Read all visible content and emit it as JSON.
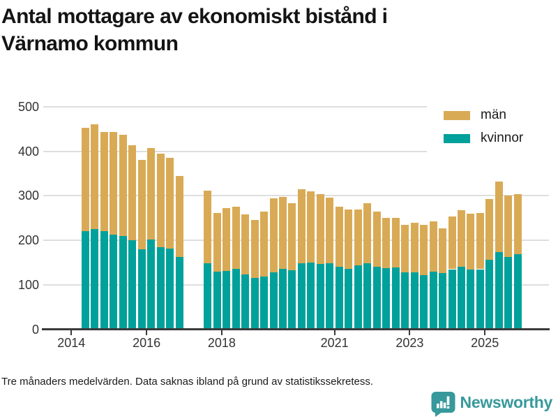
{
  "header": {
    "title": "Antal mottagare av ekonomiskt bistånd i Värnamo kommun",
    "title_lines": [
      "Antal mottagare av ekonomiskt bistånd i",
      "Värnamo kommun"
    ]
  },
  "footer": {
    "note": "Tre månaders medelvärden. Data saknas ibland på grund av statistikssekretess.",
    "brand": "Newsworthy",
    "brand_color": "#37999b"
  },
  "chart_data": {
    "type": "bar",
    "stacked": true,
    "title": "Antal mottagare av ekonomiskt bistånd i Värnamo kommun",
    "xlabel": "",
    "ylabel": "",
    "ylim": [
      0,
      500
    ],
    "y_ticks": [
      0,
      100,
      200,
      300,
      400,
      500
    ],
    "x_ticks": [
      2014,
      2016,
      2018,
      2021,
      2023,
      2025
    ],
    "grid": true,
    "legend_position": "top-right",
    "axis_color": "#3a3a3a",
    "grid_color": "#dedede",
    "series": [
      {
        "name": "män",
        "color": "#d9aa55"
      },
      {
        "name": "kvinnor",
        "color": "#00a19a"
      }
    ],
    "missing_periods": [
      "2017 Q1",
      "2017 Q2"
    ],
    "bars": [
      {
        "period": "2014 Q2",
        "kvinnor": 220,
        "man": 233
      },
      {
        "period": "2014 Q3",
        "kvinnor": 226,
        "man": 235
      },
      {
        "period": "2014 Q4",
        "kvinnor": 221,
        "man": 222
      },
      {
        "period": "2015 Q1",
        "kvinnor": 212,
        "man": 231
      },
      {
        "period": "2015 Q2",
        "kvinnor": 209,
        "man": 228
      },
      {
        "period": "2015 Q3",
        "kvinnor": 200,
        "man": 214
      },
      {
        "period": "2015 Q4",
        "kvinnor": 180,
        "man": 201
      },
      {
        "period": "2016 Q1",
        "kvinnor": 201,
        "man": 207
      },
      {
        "period": "2016 Q2",
        "kvinnor": 184,
        "man": 211
      },
      {
        "period": "2016 Q3",
        "kvinnor": 182,
        "man": 203
      },
      {
        "period": "2016 Q4",
        "kvinnor": 162,
        "man": 182
      },
      {
        "period": "2017 Q3",
        "kvinnor": 148,
        "man": 164
      },
      {
        "period": "2017 Q4",
        "kvinnor": 130,
        "man": 132
      },
      {
        "period": "2018 Q1",
        "kvinnor": 131,
        "man": 141
      },
      {
        "period": "2018 Q2",
        "kvinnor": 136,
        "man": 140
      },
      {
        "period": "2018 Q3",
        "kvinnor": 124,
        "man": 135
      },
      {
        "period": "2018 Q4",
        "kvinnor": 115,
        "man": 131
      },
      {
        "period": "2019 Q1",
        "kvinnor": 118,
        "man": 146
      },
      {
        "period": "2019 Q2",
        "kvinnor": 128,
        "man": 166
      },
      {
        "period": "2019 Q3",
        "kvinnor": 136,
        "man": 161
      },
      {
        "period": "2019 Q4",
        "kvinnor": 133,
        "man": 151
      },
      {
        "period": "2020 Q1",
        "kvinnor": 149,
        "man": 165
      },
      {
        "period": "2020 Q2",
        "kvinnor": 150,
        "man": 160
      },
      {
        "period": "2020 Q3",
        "kvinnor": 147,
        "man": 156
      },
      {
        "period": "2020 Q4",
        "kvinnor": 148,
        "man": 148
      },
      {
        "period": "2021 Q1",
        "kvinnor": 140,
        "man": 135
      },
      {
        "period": "2021 Q2",
        "kvinnor": 136,
        "man": 134
      },
      {
        "period": "2021 Q3",
        "kvinnor": 144,
        "man": 126
      },
      {
        "period": "2021 Q4",
        "kvinnor": 148,
        "man": 135
      },
      {
        "period": "2022 Q1",
        "kvinnor": 140,
        "man": 125
      },
      {
        "period": "2022 Q2",
        "kvinnor": 137,
        "man": 114
      },
      {
        "period": "2022 Q3",
        "kvinnor": 139,
        "man": 112
      },
      {
        "period": "2022 Q4",
        "kvinnor": 128,
        "man": 106
      },
      {
        "period": "2023 Q1",
        "kvinnor": 128,
        "man": 112
      },
      {
        "period": "2023 Q2",
        "kvinnor": 122,
        "man": 112
      },
      {
        "period": "2023 Q3",
        "kvinnor": 130,
        "man": 113
      },
      {
        "period": "2023 Q4",
        "kvinnor": 127,
        "man": 100
      },
      {
        "period": "2024 Q1",
        "kvinnor": 135,
        "man": 119
      },
      {
        "period": "2024 Q2",
        "kvinnor": 140,
        "man": 127
      },
      {
        "period": "2024 Q3",
        "kvinnor": 135,
        "man": 125
      },
      {
        "period": "2024 Q4",
        "kvinnor": 135,
        "man": 126
      },
      {
        "period": "2025 Q1",
        "kvinnor": 156,
        "man": 137
      },
      {
        "period": "2025 Q2",
        "kvinnor": 173,
        "man": 159
      },
      {
        "period": "2025 Q3",
        "kvinnor": 162,
        "man": 139
      },
      {
        "period": "2025 Q4",
        "kvinnor": 168,
        "man": 136
      }
    ]
  }
}
